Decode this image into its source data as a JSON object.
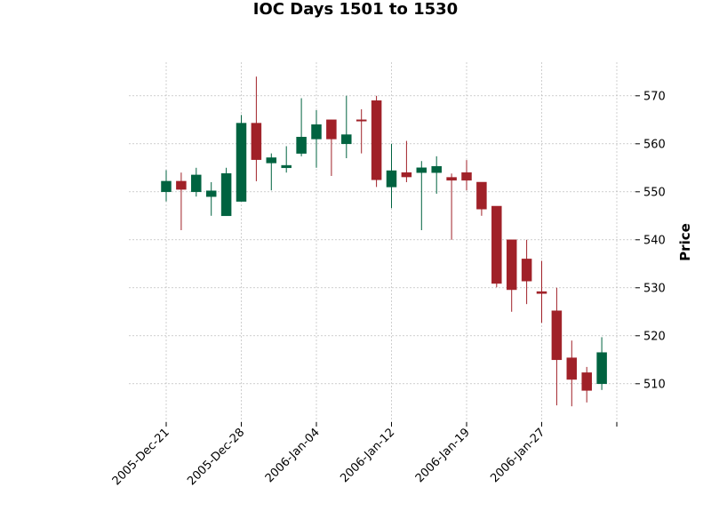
{
  "chart_data": {
    "type": "candlestick",
    "title": "IOC Days 1501 to 1530",
    "xlabel": "",
    "ylabel": "Price",
    "ylim": [
      502,
      577
    ],
    "yticks": [
      510,
      520,
      530,
      540,
      550,
      560,
      570
    ],
    "xticks": [
      {
        "index": 0,
        "label": "2005-Dec-21"
      },
      {
        "index": 5,
        "label": "2005-Dec-28"
      },
      {
        "index": 10,
        "label": "2006-Jan-04"
      },
      {
        "index": 15,
        "label": "2006-Jan-12"
      },
      {
        "index": 20,
        "label": "2006-Jan-19"
      },
      {
        "index": 25,
        "label": "2006-Jan-27"
      },
      {
        "index": 30,
        "label": ""
      }
    ],
    "grid": true,
    "colors": {
      "up": "#006340",
      "down": "#a02128",
      "grid": "#b0b0b0"
    },
    "candles": [
      {
        "o": 550,
        "h": 554.5,
        "l": 548,
        "c": 552.2
      },
      {
        "o": 552.2,
        "h": 554,
        "l": 542,
        "c": 550.5
      },
      {
        "o": 550,
        "h": 555,
        "l": 549,
        "c": 553.5
      },
      {
        "o": 549,
        "h": 552,
        "l": 545,
        "c": 550.2
      },
      {
        "o": 545,
        "h": 555,
        "l": 545,
        "c": 553.8
      },
      {
        "o": 548,
        "h": 566,
        "l": 548,
        "c": 564.3
      },
      {
        "o": 564.3,
        "h": 574,
        "l": 552.2,
        "c": 556.7
      },
      {
        "o": 556,
        "h": 558,
        "l": 550.3,
        "c": 557.1
      },
      {
        "o": 555,
        "h": 559.5,
        "l": 554,
        "c": 555.5
      },
      {
        "o": 558,
        "h": 569.5,
        "l": 557.4,
        "c": 561.4
      },
      {
        "o": 561,
        "h": 567,
        "l": 555,
        "c": 564
      },
      {
        "o": 565,
        "h": 565,
        "l": 553.3,
        "c": 561
      },
      {
        "o": 560,
        "h": 570,
        "l": 557,
        "c": 561.9
      },
      {
        "o": 565,
        "h": 567.2,
        "l": 558,
        "c": 564.8
      },
      {
        "o": 569,
        "h": 570,
        "l": 551,
        "c": 552.5
      },
      {
        "o": 551,
        "h": 560,
        "l": 546.6,
        "c": 554.4
      },
      {
        "o": 554,
        "h": 560.6,
        "l": 552,
        "c": 553.1
      },
      {
        "o": 554,
        "h": 556.4,
        "l": 542,
        "c": 555
      },
      {
        "o": 554,
        "h": 557.4,
        "l": 549.6,
        "c": 555.3
      },
      {
        "o": 553,
        "h": 553.8,
        "l": 540,
        "c": 552.4
      },
      {
        "o": 554,
        "h": 556.6,
        "l": 550.3,
        "c": 552.4
      },
      {
        "o": 552,
        "h": 552,
        "l": 545,
        "c": 546.4
      },
      {
        "o": 547,
        "h": 547,
        "l": 530.1,
        "c": 530.9
      },
      {
        "o": 540,
        "h": 540,
        "l": 525,
        "c": 529.6
      },
      {
        "o": 536,
        "h": 540,
        "l": 526.6,
        "c": 531.4
      },
      {
        "o": 529.2,
        "h": 535.6,
        "l": 522.7,
        "c": 528.8
      },
      {
        "o": 525.2,
        "h": 530,
        "l": 505.5,
        "c": 515
      },
      {
        "o": 515.4,
        "h": 519,
        "l": 505.3,
        "c": 510.9
      },
      {
        "o": 512.3,
        "h": 513.5,
        "l": 506.1,
        "c": 508.6
      },
      {
        "o": 510,
        "h": 519.7,
        "l": 508.7,
        "c": 516.5
      }
    ]
  }
}
